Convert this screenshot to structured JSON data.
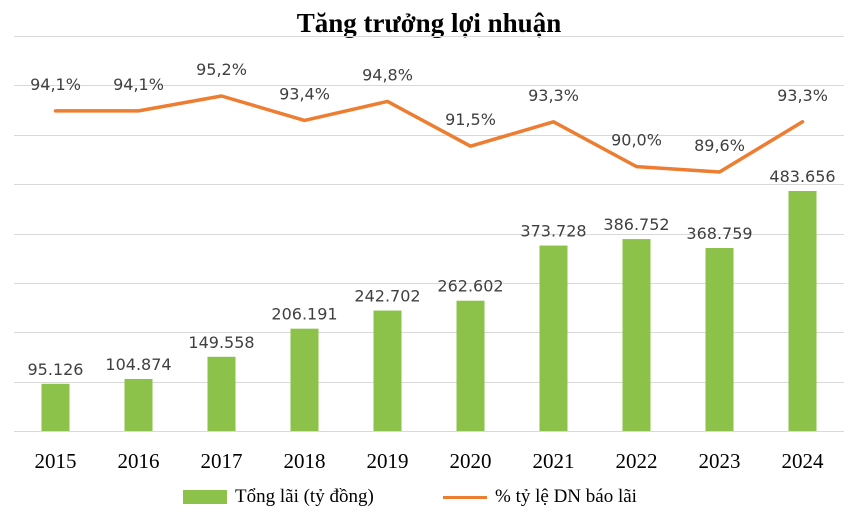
{
  "chart_data": {
    "type": "bar",
    "title": "Tăng trưởng lợi nhuận",
    "categories": [
      "2015",
      "2016",
      "2017",
      "2018",
      "2019",
      "2020",
      "2021",
      "2022",
      "2023",
      "2024"
    ],
    "series": [
      {
        "name": "Tổng lãi (tỷ đồng)",
        "type": "bar",
        "color": "#8cc24a",
        "values": [
          95126,
          104874,
          149558,
          206191,
          242702,
          262602,
          373728,
          386752,
          368759,
          483656
        ],
        "labels": [
          "95.126",
          "104.874",
          "149.558",
          "206.191",
          "242.702",
          "262.602",
          "373.728",
          "386.752",
          "368.759",
          "483.656"
        ]
      },
      {
        "name": "% tỷ lệ DN báo lãi",
        "type": "line",
        "color": "#ed7d31",
        "values": [
          94.1,
          94.1,
          95.2,
          93.4,
          94.8,
          91.5,
          93.3,
          90.0,
          89.6,
          93.3
        ],
        "labels": [
          "94,1%",
          "94,1%",
          "95,2%",
          "93,4%",
          "94,8%",
          "91,5%",
          "93,3%",
          "90,0%",
          "89,6%",
          "93,3%"
        ]
      }
    ],
    "grid": true,
    "legend_position": "bottom"
  }
}
